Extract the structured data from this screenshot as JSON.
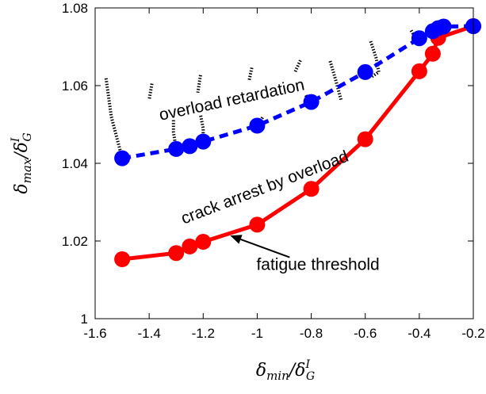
{
  "chart_data": {
    "type": "line",
    "xlim": [
      -1.6,
      -0.2
    ],
    "ylim": [
      1.0,
      1.08
    ],
    "xticks": [
      "-1.6",
      "-1.4",
      "-1.2",
      "-1",
      "-0.8",
      "-0.6",
      "-0.4",
      "-0.2"
    ],
    "xtick_values": [
      -1.6,
      -1.4,
      -1.2,
      -1.0,
      -0.8,
      -0.6,
      -0.4,
      -0.2
    ],
    "yticks": [
      "1",
      "1.02",
      "1.04",
      "1.06",
      "1.08"
    ],
    "ytick_values": [
      1.0,
      1.02,
      1.04,
      1.06,
      1.08
    ],
    "xlabel": {
      "base": "δ",
      "sub": "min",
      "sep": "/δ",
      "sup": "I",
      "sub2": "G"
    },
    "ylabel": {
      "base": "δ",
      "sub": "max",
      "sep": "/δ",
      "sup": "I",
      "sub2": "G"
    },
    "grid": false,
    "series": [
      {
        "id": "fatigue",
        "color": "#ff0000",
        "line_style": "solid",
        "x": [
          -1.5,
          -1.3,
          -1.25,
          -1.2,
          -1.0,
          -0.8,
          -0.6,
          -0.4,
          -0.35,
          -0.33,
          -0.2
        ],
        "y": [
          1.0153,
          1.0169,
          1.0186,
          1.0198,
          1.0242,
          1.0334,
          1.0462,
          1.0637,
          1.0682,
          1.0723,
          1.0753
        ]
      },
      {
        "id": "overload",
        "color": "#0000ff",
        "line_style": "dashed",
        "x": [
          -1.5,
          -1.3,
          -1.25,
          -1.2,
          -1.0,
          -0.8,
          -0.6,
          -0.4,
          -0.35,
          -0.33,
          -0.31,
          -0.2
        ],
        "y": [
          1.0413,
          1.0437,
          1.0444,
          1.0456,
          1.0497,
          1.0558,
          1.0635,
          1.0722,
          1.074,
          1.0748,
          1.0752,
          1.0753
        ]
      }
    ],
    "boundary_curves": [
      {
        "x": [
          -1.5,
          -1.54,
          -1.56
        ],
        "y": [
          1.0413,
          1.052,
          1.0621
        ]
      },
      {
        "x": [
          -1.3,
          -1.31,
          -1.31
        ],
        "y": [
          1.0437,
          1.048,
          1.0513
        ]
      },
      {
        "x": [
          -1.2,
          -1.2,
          -1.21
        ],
        "y": [
          1.0456,
          1.049,
          1.0525
        ]
      },
      {
        "x": [
          -1.39,
          -1.4
        ],
        "y": [
          1.0605,
          1.0563
        ]
      },
      {
        "x": [
          -1.21,
          -1.22
        ],
        "y": [
          1.0627,
          1.0582
        ]
      },
      {
        "x": [
          -1.02,
          -1.03
        ],
        "y": [
          1.0646,
          1.0613
        ]
      },
      {
        "x": [
          -0.98,
          -1.0
        ],
        "y": [
          1.0518,
          1.0495
        ]
      },
      {
        "x": [
          -0.82,
          -0.81,
          -0.8
        ],
        "y": [
          1.0575,
          1.0562,
          1.0558
        ]
      },
      {
        "x": [
          -0.84,
          -0.86
        ],
        "y": [
          1.0665,
          1.0635
        ]
      },
      {
        "x": [
          -0.73,
          -0.71,
          -0.69
        ],
        "y": [
          1.0663,
          1.0616,
          1.0564
        ]
      },
      {
        "x": [
          -0.58,
          -0.56,
          -0.55,
          -0.58
        ],
        "y": [
          1.0714,
          1.0672,
          1.0635,
          1.0621
        ]
      },
      {
        "x": [
          -0.43,
          -0.41,
          -0.4
        ],
        "y": [
          1.0742,
          1.0718,
          1.0722
        ]
      }
    ],
    "annotations": [
      {
        "text": "overload retardation",
        "x": -1.09,
        "y": 1.055,
        "rotate": -12
      },
      {
        "text": "crack arrest by overload",
        "x": -0.965,
        "y": 1.0325,
        "rotate": -21
      },
      {
        "text": "fatigue threshold",
        "x": -0.775,
        "y": 1.0126,
        "rotate": 0,
        "arrow_from": [
          -0.88,
          1.0158
        ],
        "arrow_to": [
          -1.1,
          1.0214
        ]
      }
    ]
  }
}
